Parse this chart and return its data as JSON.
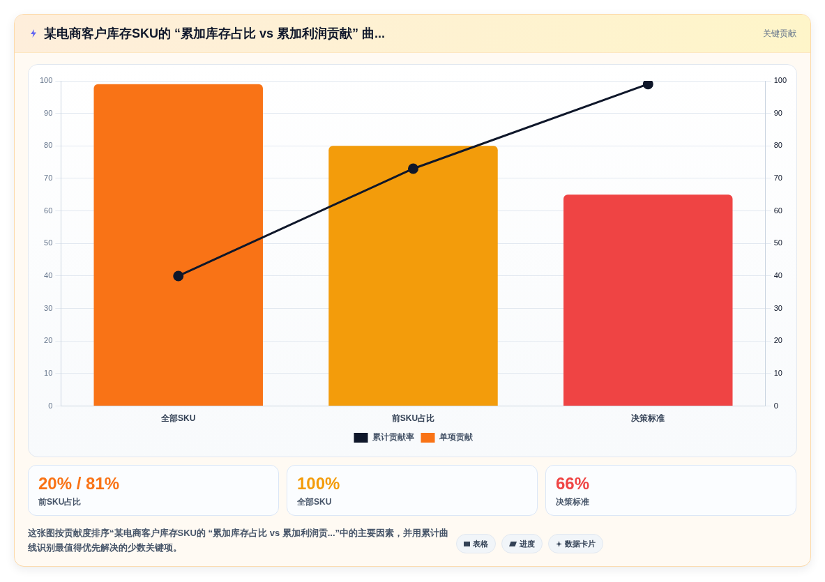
{
  "chart_data": {
    "type": "bar",
    "title": "某电商客户库存SKU的 “累加库存占比 vs 累加利润贡献” 曲...",
    "categories": [
      "全部SKU",
      "前SKU占比",
      "决策标准"
    ],
    "series": [
      {
        "name": "累计贡献率",
        "type": "line",
        "color": "#0f172a",
        "axis": "y2",
        "values": [
          40,
          73,
          99
        ]
      },
      {
        "name": "单项贡献",
        "color": "#f97316",
        "colors": [
          "#f97316",
          "#f39c0b",
          "#ef4444"
        ],
        "values": [
          99,
          80,
          65
        ]
      }
    ],
    "ylim": [
      0,
      100
    ],
    "yticks": [
      0,
      10,
      20,
      30,
      40,
      50,
      60,
      70,
      80,
      90,
      100
    ],
    "y2lim": [
      0,
      100
    ],
    "y2ticks": [
      0,
      10,
      20,
      30,
      40,
      50,
      60,
      70,
      80,
      90,
      100
    ],
    "grid": "y",
    "legend": "bottom",
    "marker": "circle",
    "line_style": "solid",
    "annotations": [
      "关键贡献",
      "20% / 81%",
      "前SKU占比",
      "100%",
      "全部SKU",
      "66%",
      "决策标准",
      "这张图按贡献度排序“某电商客户库存SKU的 “累加库存占比 vs 累加利润贡...”中的主要因素，并用累计曲线识别最值得优先解决的少数关键项。",
      "表格",
      "进度",
      "数据卡片"
    ]
  }
}
